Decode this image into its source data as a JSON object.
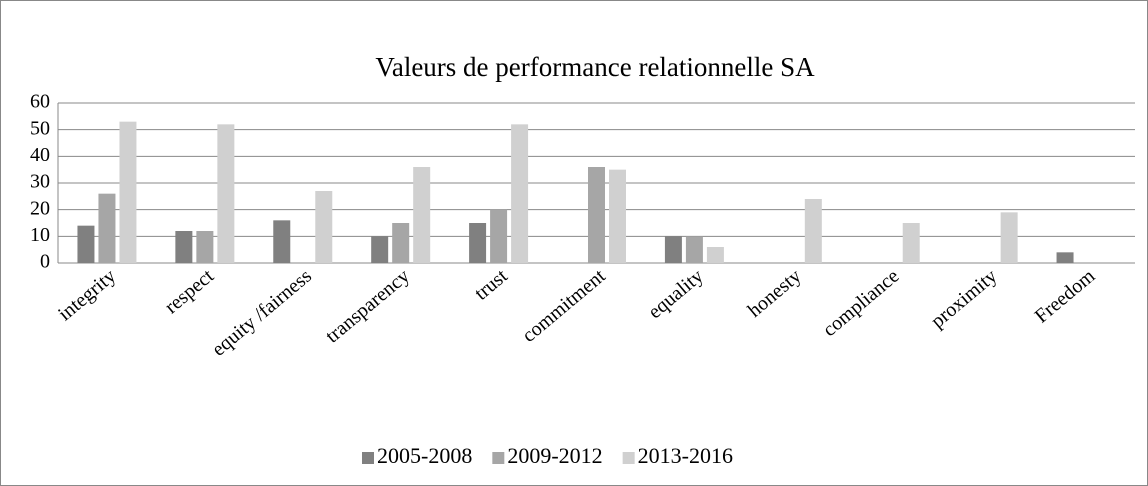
{
  "chart_data": {
    "type": "bar",
    "title": "Valeurs de performance relationnelle SA",
    "categories": [
      "integrity",
      "respect",
      "equity /fairness",
      "transparency",
      "trust",
      "commitment",
      "equality",
      "honesty",
      "compliance",
      "proximity",
      "Freedom"
    ],
    "series": [
      {
        "name": "2005-2008",
        "color": "#808080",
        "values": [
          14,
          12,
          16,
          10,
          15,
          0,
          10,
          0,
          0,
          0,
          4
        ]
      },
      {
        "name": "2009-2012",
        "color": "#a6a6a6",
        "values": [
          26,
          12,
          0,
          15,
          20,
          36,
          10,
          0,
          0,
          0,
          0
        ]
      },
      {
        "name": "2013-2016",
        "color": "#d0d0d0",
        "values": [
          53,
          52,
          27,
          36,
          52,
          35,
          6,
          24,
          15,
          19,
          0
        ]
      }
    ],
    "ylim": [
      0,
      60
    ],
    "yticks": [
      0,
      10,
      20,
      30,
      40,
      50,
      60
    ],
    "grid": true,
    "legend": "bottom"
  }
}
